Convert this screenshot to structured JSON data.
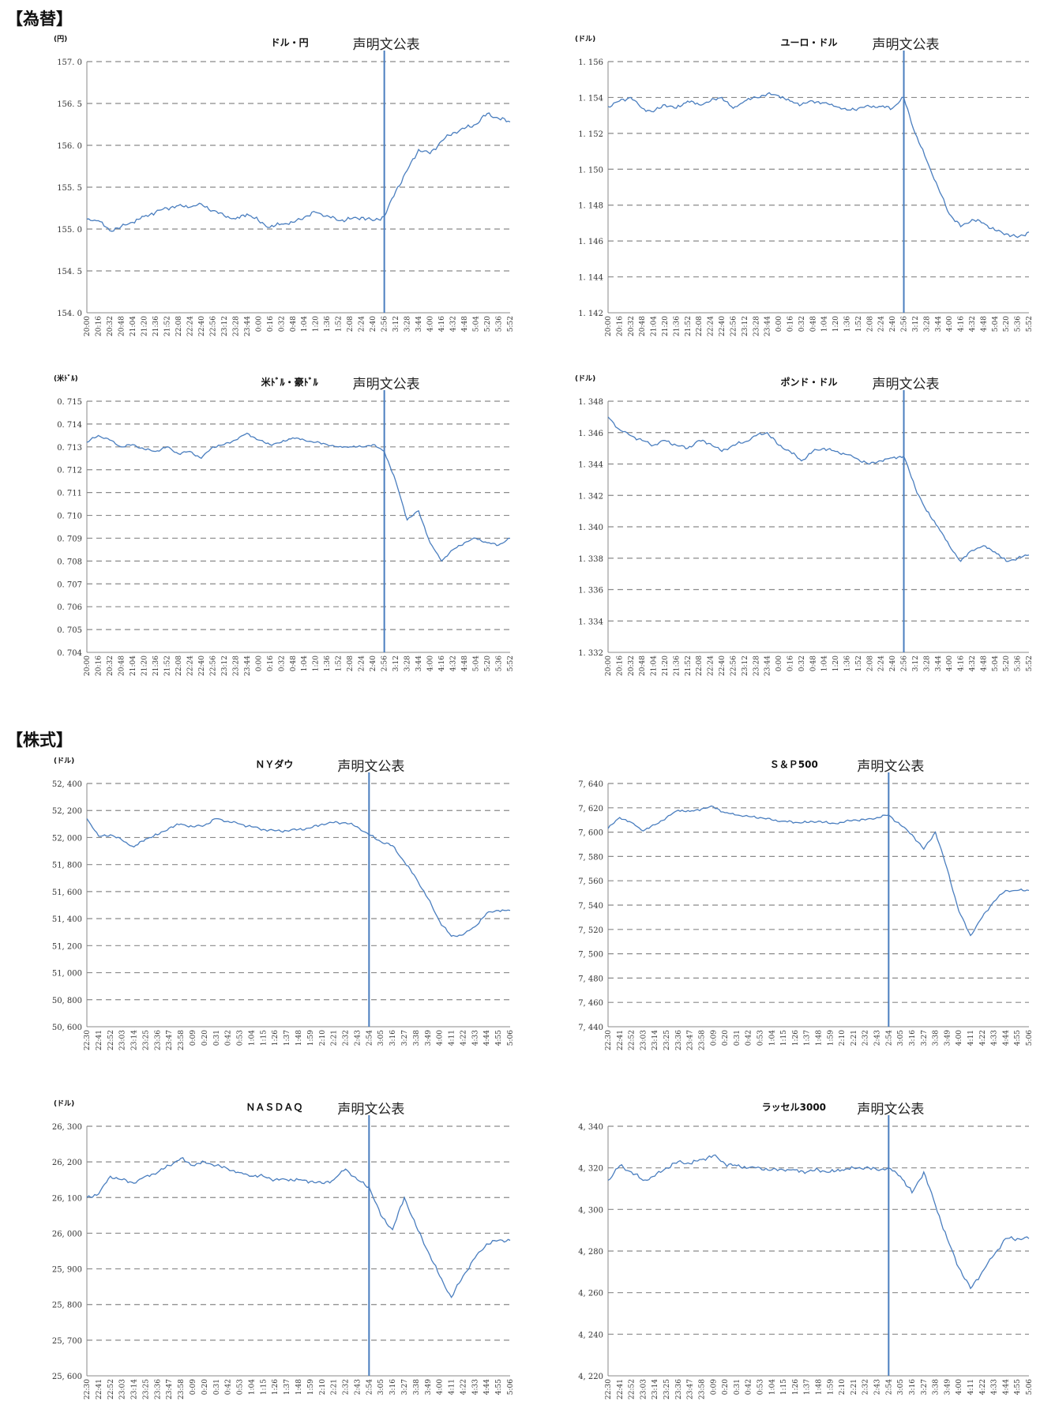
{
  "sections": {
    "fx": "【為替】",
    "stocks": "【株式】"
  },
  "announce_label": "声明文公表",
  "colors": {
    "line": "#4a7ebf",
    "grid": "#8a8a8a",
    "axis": "#888888"
  },
  "chart_data": [
    {
      "id": "usdjpy",
      "type": "line",
      "title": "ドル・円",
      "unit": "(円)",
      "ylim": [
        154.0,
        157.0
      ],
      "ystep": 0.5,
      "ydec": 1,
      "ysep": ". ",
      "x": [
        "20:00",
        "20:16",
        "20:32",
        "20:48",
        "21:04",
        "21:20",
        "21:36",
        "21:52",
        "22:08",
        "22:24",
        "22:40",
        "22:56",
        "23:12",
        "23:28",
        "23:44",
        "0:00",
        "0:16",
        "0:32",
        "0:48",
        "1:04",
        "1:20",
        "1:36",
        "1:52",
        "2:08",
        "2:24",
        "2:40",
        "2:56",
        "3:12",
        "3:28",
        "3:44",
        "4:00",
        "4:16",
        "4:32",
        "4:48",
        "5:04",
        "5:20",
        "5:36",
        "5:52"
      ],
      "event_x": "2:56",
      "values": [
        155.12,
        155.1,
        154.98,
        155.03,
        155.08,
        155.15,
        155.2,
        155.25,
        155.28,
        155.26,
        155.3,
        155.22,
        155.16,
        155.12,
        155.18,
        155.1,
        155.02,
        155.06,
        155.08,
        155.14,
        155.2,
        155.16,
        155.1,
        155.12,
        155.14,
        155.1,
        155.15,
        155.45,
        155.7,
        155.95,
        155.9,
        156.05,
        156.15,
        156.2,
        156.25,
        156.38,
        156.32,
        156.28
      ]
    },
    {
      "id": "eurusd",
      "type": "line",
      "title": "ユーロ・ドル",
      "unit": "(ドル)",
      "ylim": [
        1.142,
        1.156
      ],
      "ystep": 0.002,
      "ydec": 3,
      "ysep": ". ",
      "x": [
        "20:00",
        "20:16",
        "20:32",
        "20:48",
        "21:04",
        "21:20",
        "21:36",
        "21:52",
        "22:08",
        "22:24",
        "22:40",
        "22:56",
        "23:12",
        "23:28",
        "23:44",
        "0:00",
        "0:16",
        "0:32",
        "0:48",
        "1:04",
        "1:20",
        "1:36",
        "1:52",
        "2:08",
        "2:24",
        "2:40",
        "2:56",
        "3:12",
        "3:28",
        "3:44",
        "4:00",
        "4:16",
        "4:32",
        "4:48",
        "5:04",
        "5:20",
        "5:36",
        "5:52"
      ],
      "event_x": "2:56",
      "values": [
        1.1535,
        1.1538,
        1.154,
        1.1534,
        1.1532,
        1.1536,
        1.1534,
        1.1538,
        1.1536,
        1.1538,
        1.154,
        1.1534,
        1.1538,
        1.154,
        1.1542,
        1.1541,
        1.1538,
        1.1536,
        1.1538,
        1.1537,
        1.1535,
        1.1533,
        1.1534,
        1.1535,
        1.1535,
        1.1534,
        1.154,
        1.152,
        1.1505,
        1.149,
        1.1475,
        1.1468,
        1.1472,
        1.147,
        1.1466,
        1.1464,
        1.1462,
        1.1465
      ]
    },
    {
      "id": "audusd",
      "type": "line",
      "title": "米ﾄﾞﾙ・豪ﾄﾞﾙ",
      "unit": "(米ﾄﾞﾙ)",
      "ylim": [
        0.704,
        0.715
      ],
      "ystep": 0.001,
      "ydec": 3,
      "ysep": ". ",
      "x": [
        "20:00",
        "20:16",
        "20:32",
        "20:48",
        "21:04",
        "21:20",
        "21:36",
        "21:52",
        "22:08",
        "22:24",
        "22:40",
        "22:56",
        "23:12",
        "23:28",
        "23:44",
        "0:00",
        "0:16",
        "0:32",
        "0:48",
        "1:04",
        "1:20",
        "1:36",
        "1:52",
        "2:08",
        "2:24",
        "2:40",
        "2:56",
        "3:12",
        "3:28",
        "3:44",
        "4:00",
        "4:16",
        "4:32",
        "4:48",
        "5:04",
        "5:20",
        "5:36",
        "5:52"
      ],
      "event_x": "2:56",
      "values": [
        0.7132,
        0.7135,
        0.7133,
        0.713,
        0.7131,
        0.7129,
        0.7128,
        0.713,
        0.7127,
        0.7128,
        0.7125,
        0.713,
        0.7131,
        0.7133,
        0.7136,
        0.7133,
        0.7131,
        0.7132,
        0.7134,
        0.7133,
        0.7132,
        0.7131,
        0.713,
        0.713,
        0.713,
        0.7131,
        0.7128,
        0.7115,
        0.7098,
        0.7102,
        0.7088,
        0.708,
        0.7085,
        0.7088,
        0.709,
        0.7088,
        0.7087,
        0.709
      ]
    },
    {
      "id": "gbpusd",
      "type": "line",
      "title": "ポンド・ドル",
      "unit": "(ドル)",
      "ylim": [
        1.332,
        1.348
      ],
      "ystep": 0.002,
      "ydec": 3,
      "ysep": ". ",
      "x": [
        "20:00",
        "20:16",
        "20:32",
        "20:48",
        "21:04",
        "21:20",
        "21:36",
        "21:52",
        "22:08",
        "22:24",
        "22:40",
        "22:56",
        "23:12",
        "23:28",
        "23:44",
        "0:00",
        "0:16",
        "0:32",
        "0:48",
        "1:04",
        "1:20",
        "1:36",
        "1:52",
        "2:08",
        "2:24",
        "2:40",
        "2:56",
        "3:12",
        "3:28",
        "3:44",
        "4:00",
        "4:16",
        "4:32",
        "4:48",
        "5:04",
        "5:20",
        "5:36",
        "5:52"
      ],
      "event_x": "2:56",
      "values": [
        1.347,
        1.3462,
        1.3458,
        1.3455,
        1.3452,
        1.3455,
        1.3452,
        1.345,
        1.3455,
        1.3453,
        1.3448,
        1.3452,
        1.3454,
        1.3458,
        1.346,
        1.3452,
        1.3448,
        1.3442,
        1.3448,
        1.345,
        1.3448,
        1.3446,
        1.3443,
        1.344,
        1.3442,
        1.3444,
        1.3445,
        1.3425,
        1.341,
        1.34,
        1.3388,
        1.3378,
        1.3385,
        1.3388,
        1.3384,
        1.3378,
        1.338,
        1.3382
      ]
    },
    {
      "id": "nydow",
      "type": "line",
      "title": "ＮＹダウ",
      "unit": "(ドル)",
      "ylim": [
        50600,
        52400
      ],
      "ystep": 200,
      "ydec": 0,
      "ysep": ", ",
      "x": [
        "22:30",
        "22:41",
        "22:52",
        "23:03",
        "23:14",
        "23:25",
        "23:36",
        "23:47",
        "23:58",
        "0:09",
        "0:20",
        "0:31",
        "0:42",
        "0:53",
        "1:04",
        "1:15",
        "1:26",
        "1:37",
        "1:48",
        "1:59",
        "2:10",
        "2:21",
        "2:32",
        "2:43",
        "2:54",
        "3:05",
        "3:16",
        "3:27",
        "3:38",
        "3:49",
        "4:00",
        "4:11",
        "4:22",
        "4:33",
        "4:44",
        "4:55",
        "5:06"
      ],
      "event_x": "2:54",
      "values": [
        52140,
        52010,
        52020,
        51980,
        51930,
        51990,
        52020,
        52070,
        52100,
        52080,
        52090,
        52140,
        52120,
        52100,
        52080,
        52060,
        52050,
        52050,
        52060,
        52070,
        52100,
        52110,
        52110,
        52080,
        52020,
        51970,
        51940,
        51820,
        51700,
        51550,
        51380,
        51270,
        51280,
        51340,
        51440,
        51460,
        51460
      ]
    },
    {
      "id": "sp500",
      "type": "line",
      "title": "Ｓ＆Ｐ500",
      "unit": "",
      "ylim": [
        7440,
        7640
      ],
      "ystep": 20,
      "ydec": 0,
      "ysep": ", ",
      "x": [
        "22:30",
        "22:41",
        "22:52",
        "23:03",
        "23:14",
        "23:25",
        "23:36",
        "23:47",
        "23:58",
        "0:09",
        "0:20",
        "0:31",
        "0:42",
        "0:53",
        "1:04",
        "1:15",
        "1:26",
        "1:37",
        "1:48",
        "1:59",
        "2:10",
        "2:21",
        "2:32",
        "2:43",
        "2:54",
        "3:05",
        "3:16",
        "3:27",
        "3:38",
        "3:49",
        "4:00",
        "4:11",
        "4:22",
        "4:33",
        "4:44",
        "4:55",
        "5:06"
      ],
      "event_x": "2:54",
      "values": [
        7603,
        7612,
        7608,
        7601,
        7606,
        7612,
        7618,
        7617,
        7619,
        7621,
        7616,
        7614,
        7613,
        7612,
        7610,
        7609,
        7608,
        7608,
        7609,
        7607,
        7608,
        7610,
        7610,
        7612,
        7614,
        7606,
        7598,
        7586,
        7600,
        7570,
        7535,
        7515,
        7530,
        7543,
        7552,
        7552,
        7552
      ]
    },
    {
      "id": "nasdaq",
      "type": "line",
      "title": "ＮＡＳＤＡＱ",
      "unit": "(ドル)",
      "ylim": [
        25600,
        26300
      ],
      "ystep": 100,
      "ydec": 0,
      "ysep": ", ",
      "x": [
        "22:30",
        "22:41",
        "22:52",
        "23:03",
        "23:14",
        "23:25",
        "23:36",
        "23:47",
        "23:58",
        "0:09",
        "0:20",
        "0:31",
        "0:42",
        "0:53",
        "1:04",
        "1:15",
        "1:26",
        "1:37",
        "1:48",
        "1:59",
        "2:10",
        "2:21",
        "2:32",
        "2:43",
        "2:54",
        "3:05",
        "3:16",
        "3:27",
        "3:38",
        "3:49",
        "4:00",
        "4:11",
        "4:22",
        "4:33",
        "4:44",
        "4:55",
        "5:06"
      ],
      "event_x": "2:54",
      "values": [
        26100,
        26110,
        26160,
        26150,
        26140,
        26160,
        26170,
        26190,
        26210,
        26190,
        26200,
        26190,
        26180,
        26170,
        26160,
        26160,
        26150,
        26150,
        26150,
        26145,
        26140,
        26150,
        26180,
        26150,
        26130,
        26050,
        26010,
        26100,
        26020,
        25950,
        25880,
        25820,
        25880,
        25930,
        25970,
        25980,
        25980
      ]
    },
    {
      "id": "russell3000",
      "type": "line",
      "title": "ラッセル3000",
      "unit": "",
      "ylim": [
        4220,
        4340
      ],
      "ystep": 20,
      "ydec": 0,
      "ysep": ", ",
      "x": [
        "22:30",
        "22:41",
        "22:52",
        "23:03",
        "23:14",
        "23:25",
        "23:36",
        "23:47",
        "23:58",
        "0:09",
        "0:20",
        "0:31",
        "0:42",
        "0:53",
        "1:04",
        "1:15",
        "1:26",
        "1:37",
        "1:48",
        "1:59",
        "2:10",
        "2:21",
        "2:32",
        "2:43",
        "2:54",
        "3:05",
        "3:16",
        "3:27",
        "3:38",
        "3:49",
        "4:00",
        "4:11",
        "4:22",
        "4:33",
        "4:44",
        "4:55",
        "5:06"
      ],
      "event_x": "2:54",
      "values": [
        4314,
        4321,
        4318,
        4314,
        4316,
        4320,
        4323,
        4322,
        4324,
        4326,
        4322,
        4321,
        4320,
        4320,
        4319,
        4319,
        4319,
        4318,
        4319,
        4318,
        4319,
        4320,
        4320,
        4319,
        4320,
        4316,
        4308,
        4318,
        4302,
        4286,
        4272,
        4262,
        4270,
        4278,
        4286,
        4286,
        4286
      ]
    }
  ]
}
